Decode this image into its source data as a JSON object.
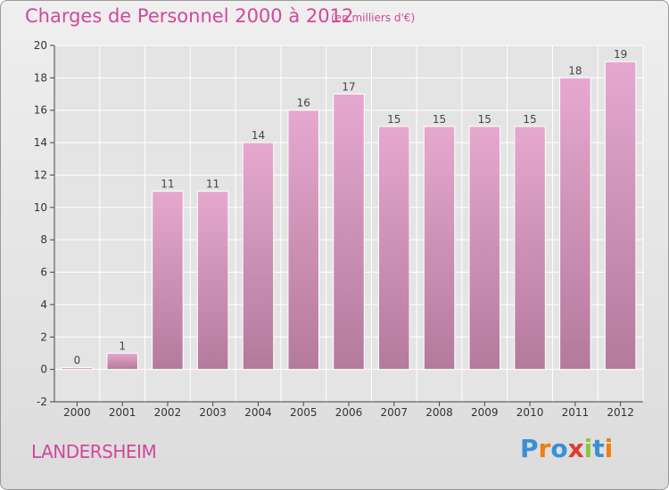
{
  "title": "Charges de Personnel 2000 à 2012",
  "subtitle": "(en milliers d'€)",
  "commune": "LANDERSHEIM",
  "logo": {
    "letters": [
      "P",
      "r",
      "o",
      "x",
      "i",
      "t",
      "i"
    ]
  },
  "colors": {
    "bar_top": "#e6a8cf",
    "bar_bottom": "#b47a9c",
    "title": "#d0489b",
    "logo": [
      "#3a8fd6",
      "#ef7d10",
      "#3a8fd6",
      "#e03b2e",
      "#8dc63f",
      "#3a8fd6",
      "#ef7d10"
    ]
  },
  "chart_data": {
    "type": "bar",
    "categories": [
      "2000",
      "2001",
      "2002",
      "2003",
      "2004",
      "2005",
      "2006",
      "2007",
      "2008",
      "2009",
      "2010",
      "2011",
      "2012"
    ],
    "values": [
      0,
      1,
      11,
      11,
      14,
      16,
      17,
      15,
      15,
      15,
      15,
      18,
      19
    ],
    "ylim": [
      -2,
      20
    ],
    "yticks": [
      -2,
      0,
      2,
      4,
      6,
      8,
      10,
      12,
      14,
      16,
      18,
      20
    ],
    "grid": true
  }
}
